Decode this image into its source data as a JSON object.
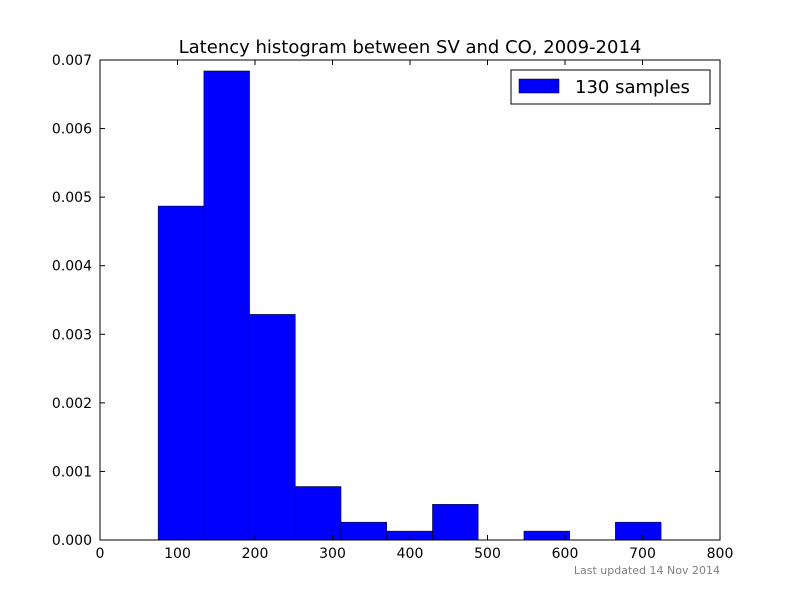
{
  "chart_data": {
    "type": "bar",
    "title": "Latency histogram between SV and CO, 2009-2014",
    "xlabel": "",
    "ylabel": "",
    "xlim": [
      0,
      800
    ],
    "ylim": [
      0,
      0.007
    ],
    "x_ticks": [
      "0",
      "100",
      "200",
      "300",
      "400",
      "500",
      "600",
      "700",
      "800"
    ],
    "y_ticks": [
      "0.000",
      "0.001",
      "0.002",
      "0.003",
      "0.004",
      "0.005",
      "0.006",
      "0.007"
    ],
    "grid": false,
    "legend_position": "top-right",
    "series": [
      {
        "name": "130 samples",
        "color": "#0000ff",
        "bins": [
          {
            "start": 75,
            "end": 134,
            "value": 0.00487
          },
          {
            "start": 134,
            "end": 193,
            "value": 0.00684
          },
          {
            "start": 193,
            "end": 252,
            "value": 0.00329
          },
          {
            "start": 252,
            "end": 311,
            "value": 0.00078
          },
          {
            "start": 311,
            "end": 370,
            "value": 0.00026
          },
          {
            "start": 370,
            "end": 429,
            "value": 0.00013
          },
          {
            "start": 429,
            "end": 488,
            "value": 0.00052
          },
          {
            "start": 488,
            "end": 547,
            "value": 0
          },
          {
            "start": 547,
            "end": 606,
            "value": 0.00013
          },
          {
            "start": 606,
            "end": 665,
            "value": 0
          },
          {
            "start": 665,
            "end": 724,
            "value": 0.00026
          }
        ]
      }
    ]
  },
  "footnote": "Last updated 14 Nov 2014"
}
